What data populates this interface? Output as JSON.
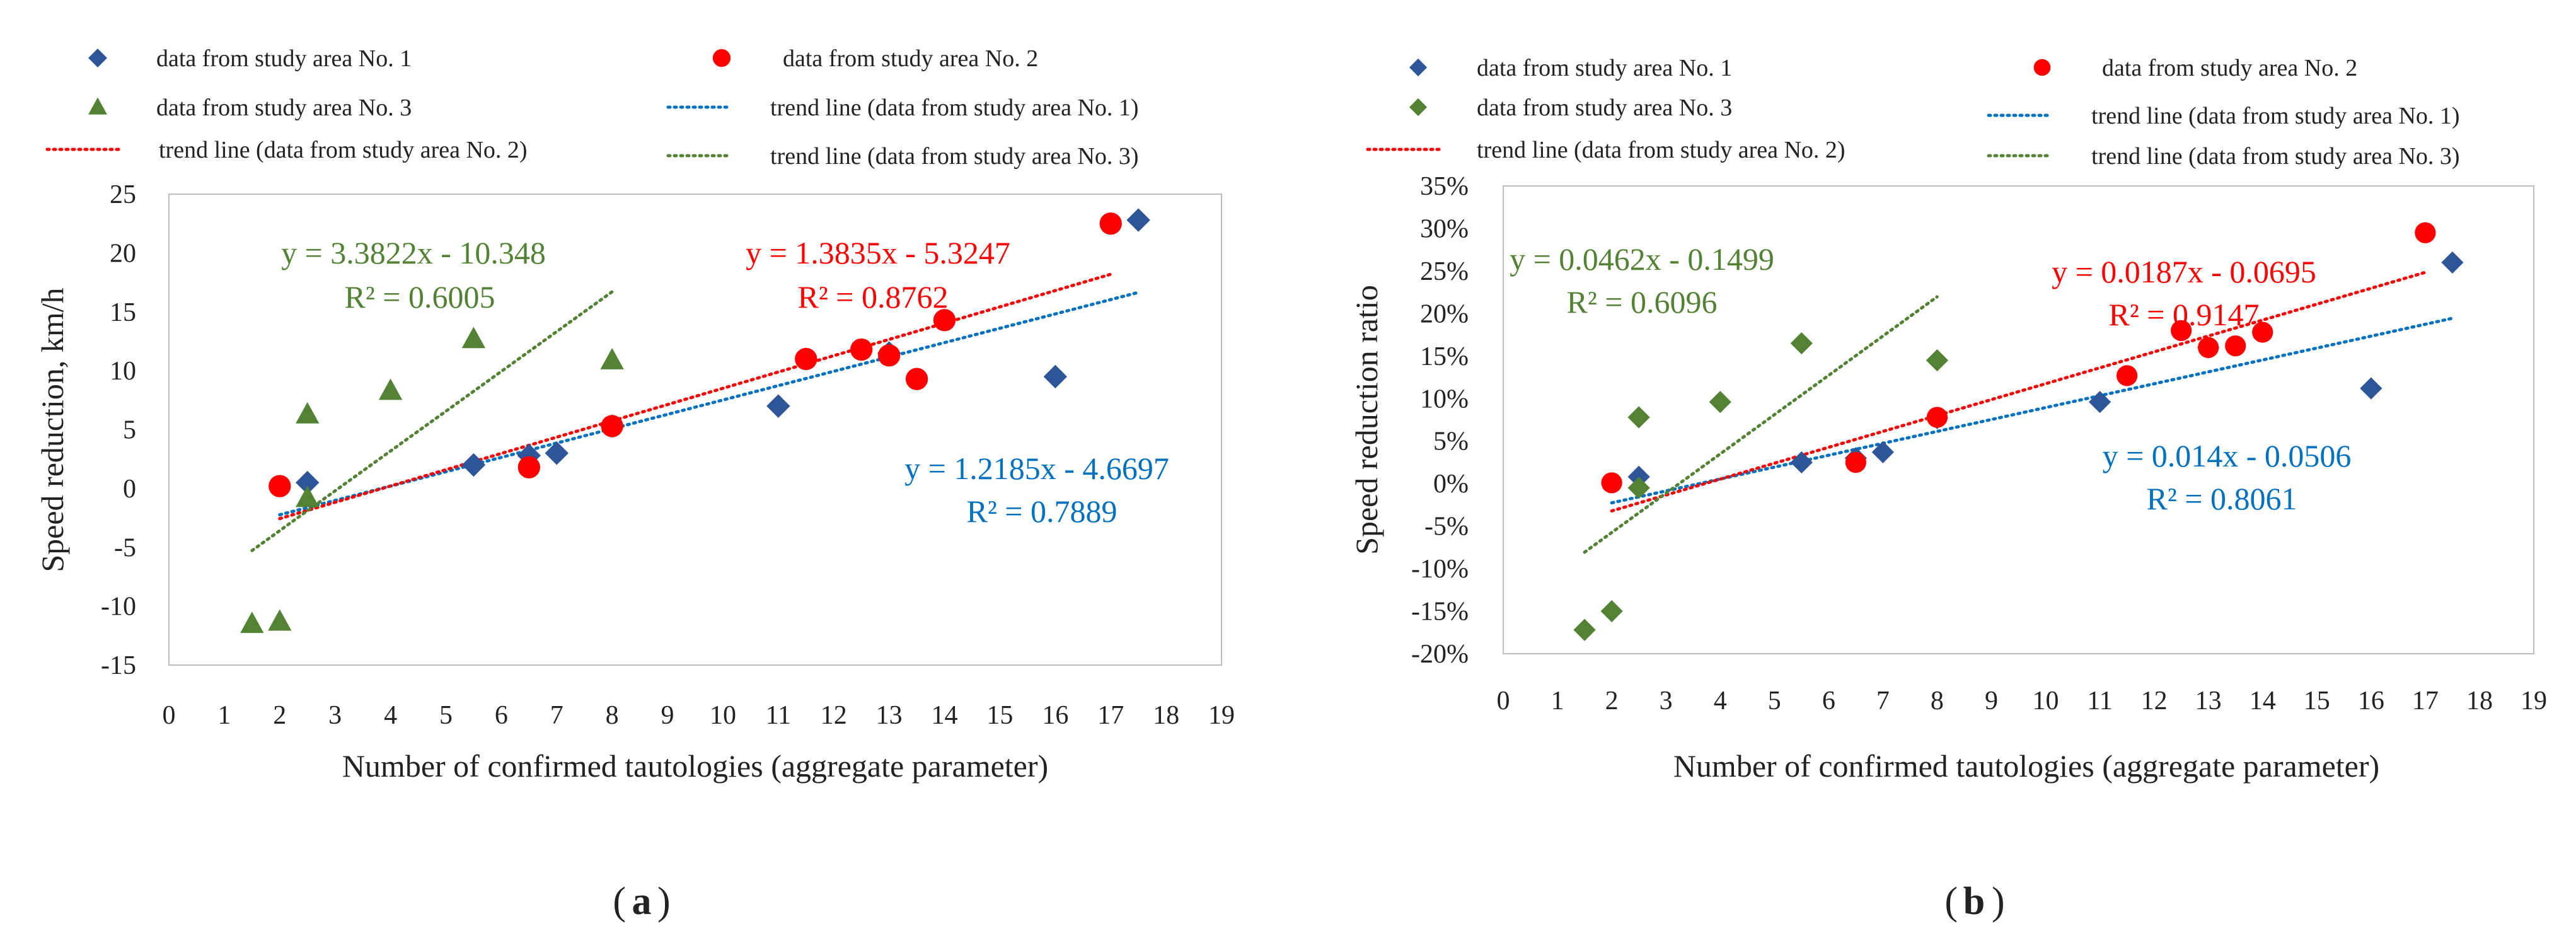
{
  "chart_data": [
    {
      "type": "scatter",
      "caption": "a",
      "xlabel": "Number of confirmed tautologies (aggregate parameter)",
      "ylabel": "Speed reduction, km/h",
      "xlim": [
        0,
        19
      ],
      "ylim": [
        -15,
        25
      ],
      "xticks": [
        0,
        1,
        2,
        3,
        4,
        5,
        6,
        7,
        8,
        9,
        10,
        11,
        12,
        13,
        14,
        15,
        16,
        17,
        18,
        19
      ],
      "yticks": [
        -15,
        -10,
        -5,
        0,
        5,
        10,
        15,
        20,
        25
      ],
      "y_percent": false,
      "grid": false,
      "legend_position": "top",
      "series": [
        {
          "name": "data from study area No. 1",
          "marker": "diamond",
          "color": "#2E5597",
          "x": [
            2.5,
            5.5,
            6.5,
            7,
            8,
            11,
            13,
            16,
            17.5
          ],
          "y": [
            0.5,
            2,
            2.8,
            3,
            5.3,
            7,
            11.5,
            9.5,
            22.8
          ]
        },
        {
          "name": "data from study area No. 2",
          "marker": "circle",
          "color": "#FF0000",
          "x": [
            2,
            6.5,
            8,
            11.5,
            12.5,
            13,
            13.5,
            14,
            17
          ],
          "y": [
            0.2,
            1.8,
            5.3,
            11,
            11.8,
            11.3,
            9.3,
            14.3,
            22.5
          ]
        },
        {
          "name": "data from study area No. 3",
          "marker": "triangle",
          "color": "#548235",
          "x": [
            1.5,
            2,
            2.5,
            2.5,
            4,
            5.5,
            8
          ],
          "y": [
            -11.5,
            -11.3,
            6.3,
            -0.8,
            8.3,
            12.7,
            10.9
          ]
        }
      ],
      "trendlines": [
        {
          "name": "trend line (data from study area No. 1)",
          "color": "#0070C0",
          "x": [
            2,
            17.5
          ],
          "slope": 1.2185,
          "intercept": -4.6697,
          "equation": "y = 1.2185x - 4.6697",
          "r2": "R² = 0.7889"
        },
        {
          "name": "trend line (data from study area No. 2)",
          "color": "#FF0000",
          "x": [
            2,
            17
          ],
          "slope": 1.3835,
          "intercept": -5.3247,
          "equation": "y = 1.3835x - 5.3247",
          "r2": "R² = 0.8762"
        },
        {
          "name": "trend line (data from study area No. 3)",
          "color": "#548235",
          "x": [
            1.5,
            8
          ],
          "slope": 3.3822,
          "intercept": -10.348,
          "equation": "y = 3.3822x - 10.348",
          "r2": "R² = 0.6005"
        }
      ]
    },
    {
      "type": "scatter",
      "caption": "b",
      "xlabel": "Number of confirmed tautologies (aggregate parameter)",
      "ylabel": "Speed reduction ratio",
      "xlim": [
        0,
        19
      ],
      "ylim": [
        -0.2,
        0.35
      ],
      "xticks": [
        0,
        1,
        2,
        3,
        4,
        5,
        6,
        7,
        8,
        9,
        10,
        11,
        12,
        13,
        14,
        15,
        16,
        17,
        18,
        19
      ],
      "yticks": [
        -0.2,
        -0.15,
        -0.1,
        -0.05,
        0,
        0.05,
        0.1,
        0.15,
        0.2,
        0.25,
        0.3,
        0.35
      ],
      "y_percent": true,
      "grid": false,
      "legend_position": "top",
      "series": [
        {
          "name": "data from study area No. 1",
          "marker": "diamond",
          "color": "#2E5597",
          "x": [
            2.5,
            5.5,
            6.5,
            7,
            8,
            11,
            13,
            16,
            17.5
          ],
          "y": [
            0.008,
            0.025,
            0.03,
            0.037,
            0.077,
            0.096,
            0.16,
            0.112,
            0.26
          ]
        },
        {
          "name": "data from study area No. 2",
          "marker": "circle",
          "color": "#FF0000",
          "x": [
            2,
            6.5,
            8,
            11.5,
            12.5,
            13,
            13.5,
            14,
            17
          ],
          "y": [
            0.001,
            0.025,
            0.078,
            0.127,
            0.18,
            0.16,
            0.162,
            0.178,
            0.295
          ]
        },
        {
          "name": "data from study area No. 3",
          "marker": "diamond",
          "color": "#548235",
          "x": [
            1.5,
            2,
            2.5,
            2.5,
            4,
            5.5,
            8
          ],
          "y": [
            -0.172,
            -0.15,
            0.078,
            -0.005,
            0.096,
            0.165,
            0.145
          ]
        }
      ],
      "trendlines": [
        {
          "name": "trend line (data from study area No. 1)",
          "color": "#0070C0",
          "x": [
            2,
            17.5
          ],
          "slope": 0.014,
          "intercept": -0.0506,
          "equation": "y = 0.014x - 0.0506",
          "r2": "R² = 0.8061"
        },
        {
          "name": "trend line (data from study area No. 2)",
          "color": "#FF0000",
          "x": [
            2,
            17
          ],
          "slope": 0.0187,
          "intercept": -0.0695,
          "equation": "y = 0.0187x - 0.0695",
          "r2": "R² = 0.9147"
        },
        {
          "name": "trend line (data from study area No. 3)",
          "color": "#548235",
          "x": [
            1.5,
            8
          ],
          "slope": 0.0462,
          "intercept": -0.1499,
          "equation": "y = 0.0462x - 0.1499",
          "r2": "R² = 0.6096"
        }
      ]
    }
  ],
  "captions": [
    "a",
    "b"
  ]
}
